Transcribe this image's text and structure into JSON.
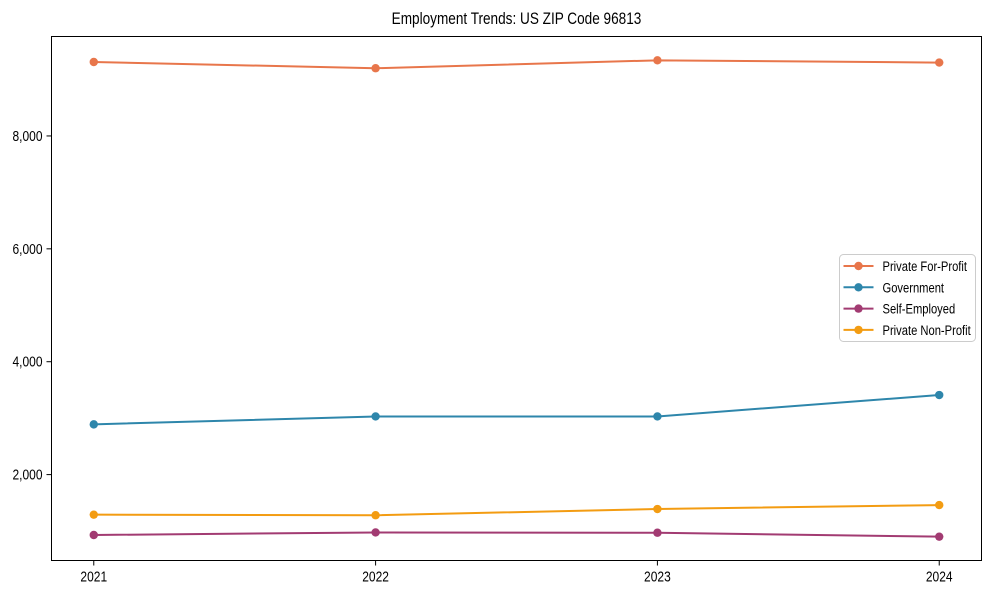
{
  "figure": {
    "title": "Employment Trends: US ZIP Code 96813"
  },
  "chart_data": {
    "type": "line",
    "title": "Employment Trends: US ZIP Code 96813",
    "xlabel": "",
    "ylabel": "",
    "x": [
      2021,
      2022,
      2023,
      2024
    ],
    "x_tick_labels": [
      "2021",
      "2022",
      "2023",
      "2024"
    ],
    "y_ticks": [
      2000,
      4000,
      6000,
      8000
    ],
    "y_tick_labels": [
      "2,000",
      "4,000",
      "6,000",
      "8,000"
    ],
    "xlim": [
      2020.85,
      2024.15
    ],
    "ylim": [
      478,
      9762
    ],
    "grid": false,
    "legend_position": "center right",
    "marker": "circle",
    "series": [
      {
        "name": "Private For-Profit",
        "color": "#E8764B",
        "values": [
          9310,
          9200,
          9340,
          9300
        ]
      },
      {
        "name": "Government",
        "color": "#2E86AB",
        "values": [
          2890,
          3030,
          3030,
          3410
        ]
      },
      {
        "name": "Self-Employed",
        "color": "#A23B72",
        "values": [
          930,
          975,
          970,
          900
        ]
      },
      {
        "name": "Private Non-Profit",
        "color": "#F39C12",
        "values": [
          1290,
          1280,
          1390,
          1460
        ]
      }
    ]
  }
}
